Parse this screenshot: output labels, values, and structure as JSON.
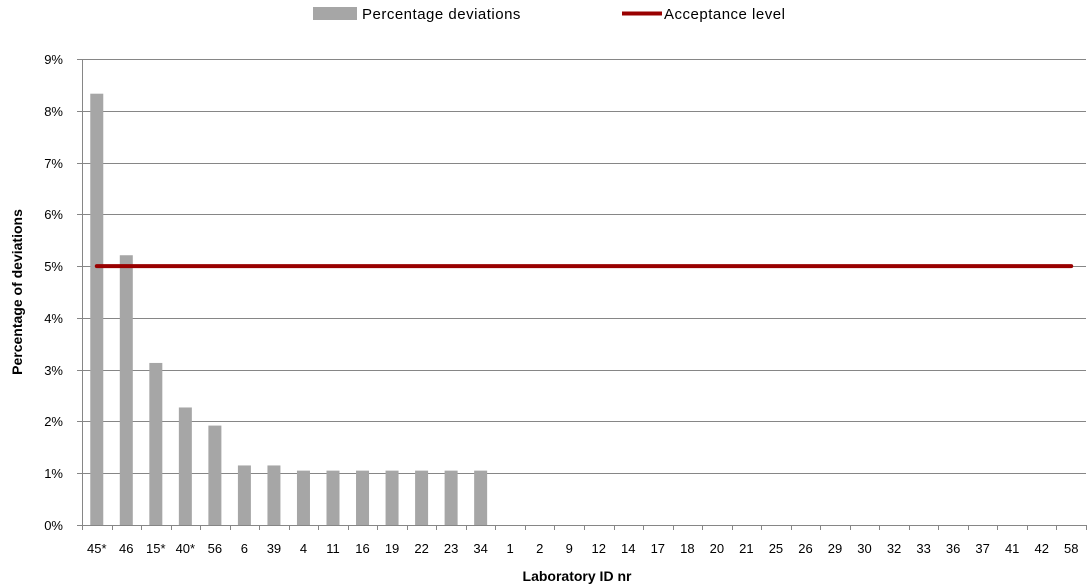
{
  "chart_data": {
    "type": "bar",
    "categories": [
      "45*",
      "46",
      "15*",
      "40*",
      "56",
      "6",
      "39",
      "4",
      "11",
      "16",
      "19",
      "22",
      "23",
      "34",
      "1",
      "2",
      "9",
      "12",
      "14",
      "17",
      "18",
      "20",
      "21",
      "25",
      "26",
      "29",
      "30",
      "32",
      "33",
      "36",
      "37",
      "41",
      "42",
      "58"
    ],
    "series": [
      {
        "name": "Percentage deviations",
        "type": "bar",
        "color": "#a6a6a6",
        "values": [
          8.33,
          5.21,
          3.13,
          2.27,
          1.92,
          1.15,
          1.15,
          1.05,
          1.05,
          1.05,
          1.05,
          1.05,
          1.05,
          1.05,
          0,
          0,
          0,
          0,
          0,
          0,
          0,
          0,
          0,
          0,
          0,
          0,
          0,
          0,
          0,
          0,
          0,
          0,
          0,
          0
        ]
      },
      {
        "name": "Acceptance level",
        "type": "line",
        "color": "#990000",
        "values": [
          5,
          5,
          5,
          5,
          5,
          5,
          5,
          5,
          5,
          5,
          5,
          5,
          5,
          5,
          5,
          5,
          5,
          5,
          5,
          5,
          5,
          5,
          5,
          5,
          5,
          5,
          5,
          5,
          5,
          5,
          5,
          5,
          5,
          5
        ]
      }
    ],
    "xlabel": "Laboratory ID nr",
    "ylabel": "Percentage of deviations",
    "ylim": [
      0,
      9
    ],
    "yticks": [
      {
        "value": 0,
        "label": "0%"
      },
      {
        "value": 1,
        "label": "1%"
      },
      {
        "value": 2,
        "label": "2%"
      },
      {
        "value": 3,
        "label": "3%"
      },
      {
        "value": 4,
        "label": "4%"
      },
      {
        "value": 5,
        "label": "5%"
      },
      {
        "value": 6,
        "label": "6%"
      },
      {
        "value": 7,
        "label": "7%"
      },
      {
        "value": 8,
        "label": "8%"
      },
      {
        "value": 9,
        "label": "9%"
      }
    ],
    "grid": true,
    "legend": "top"
  }
}
